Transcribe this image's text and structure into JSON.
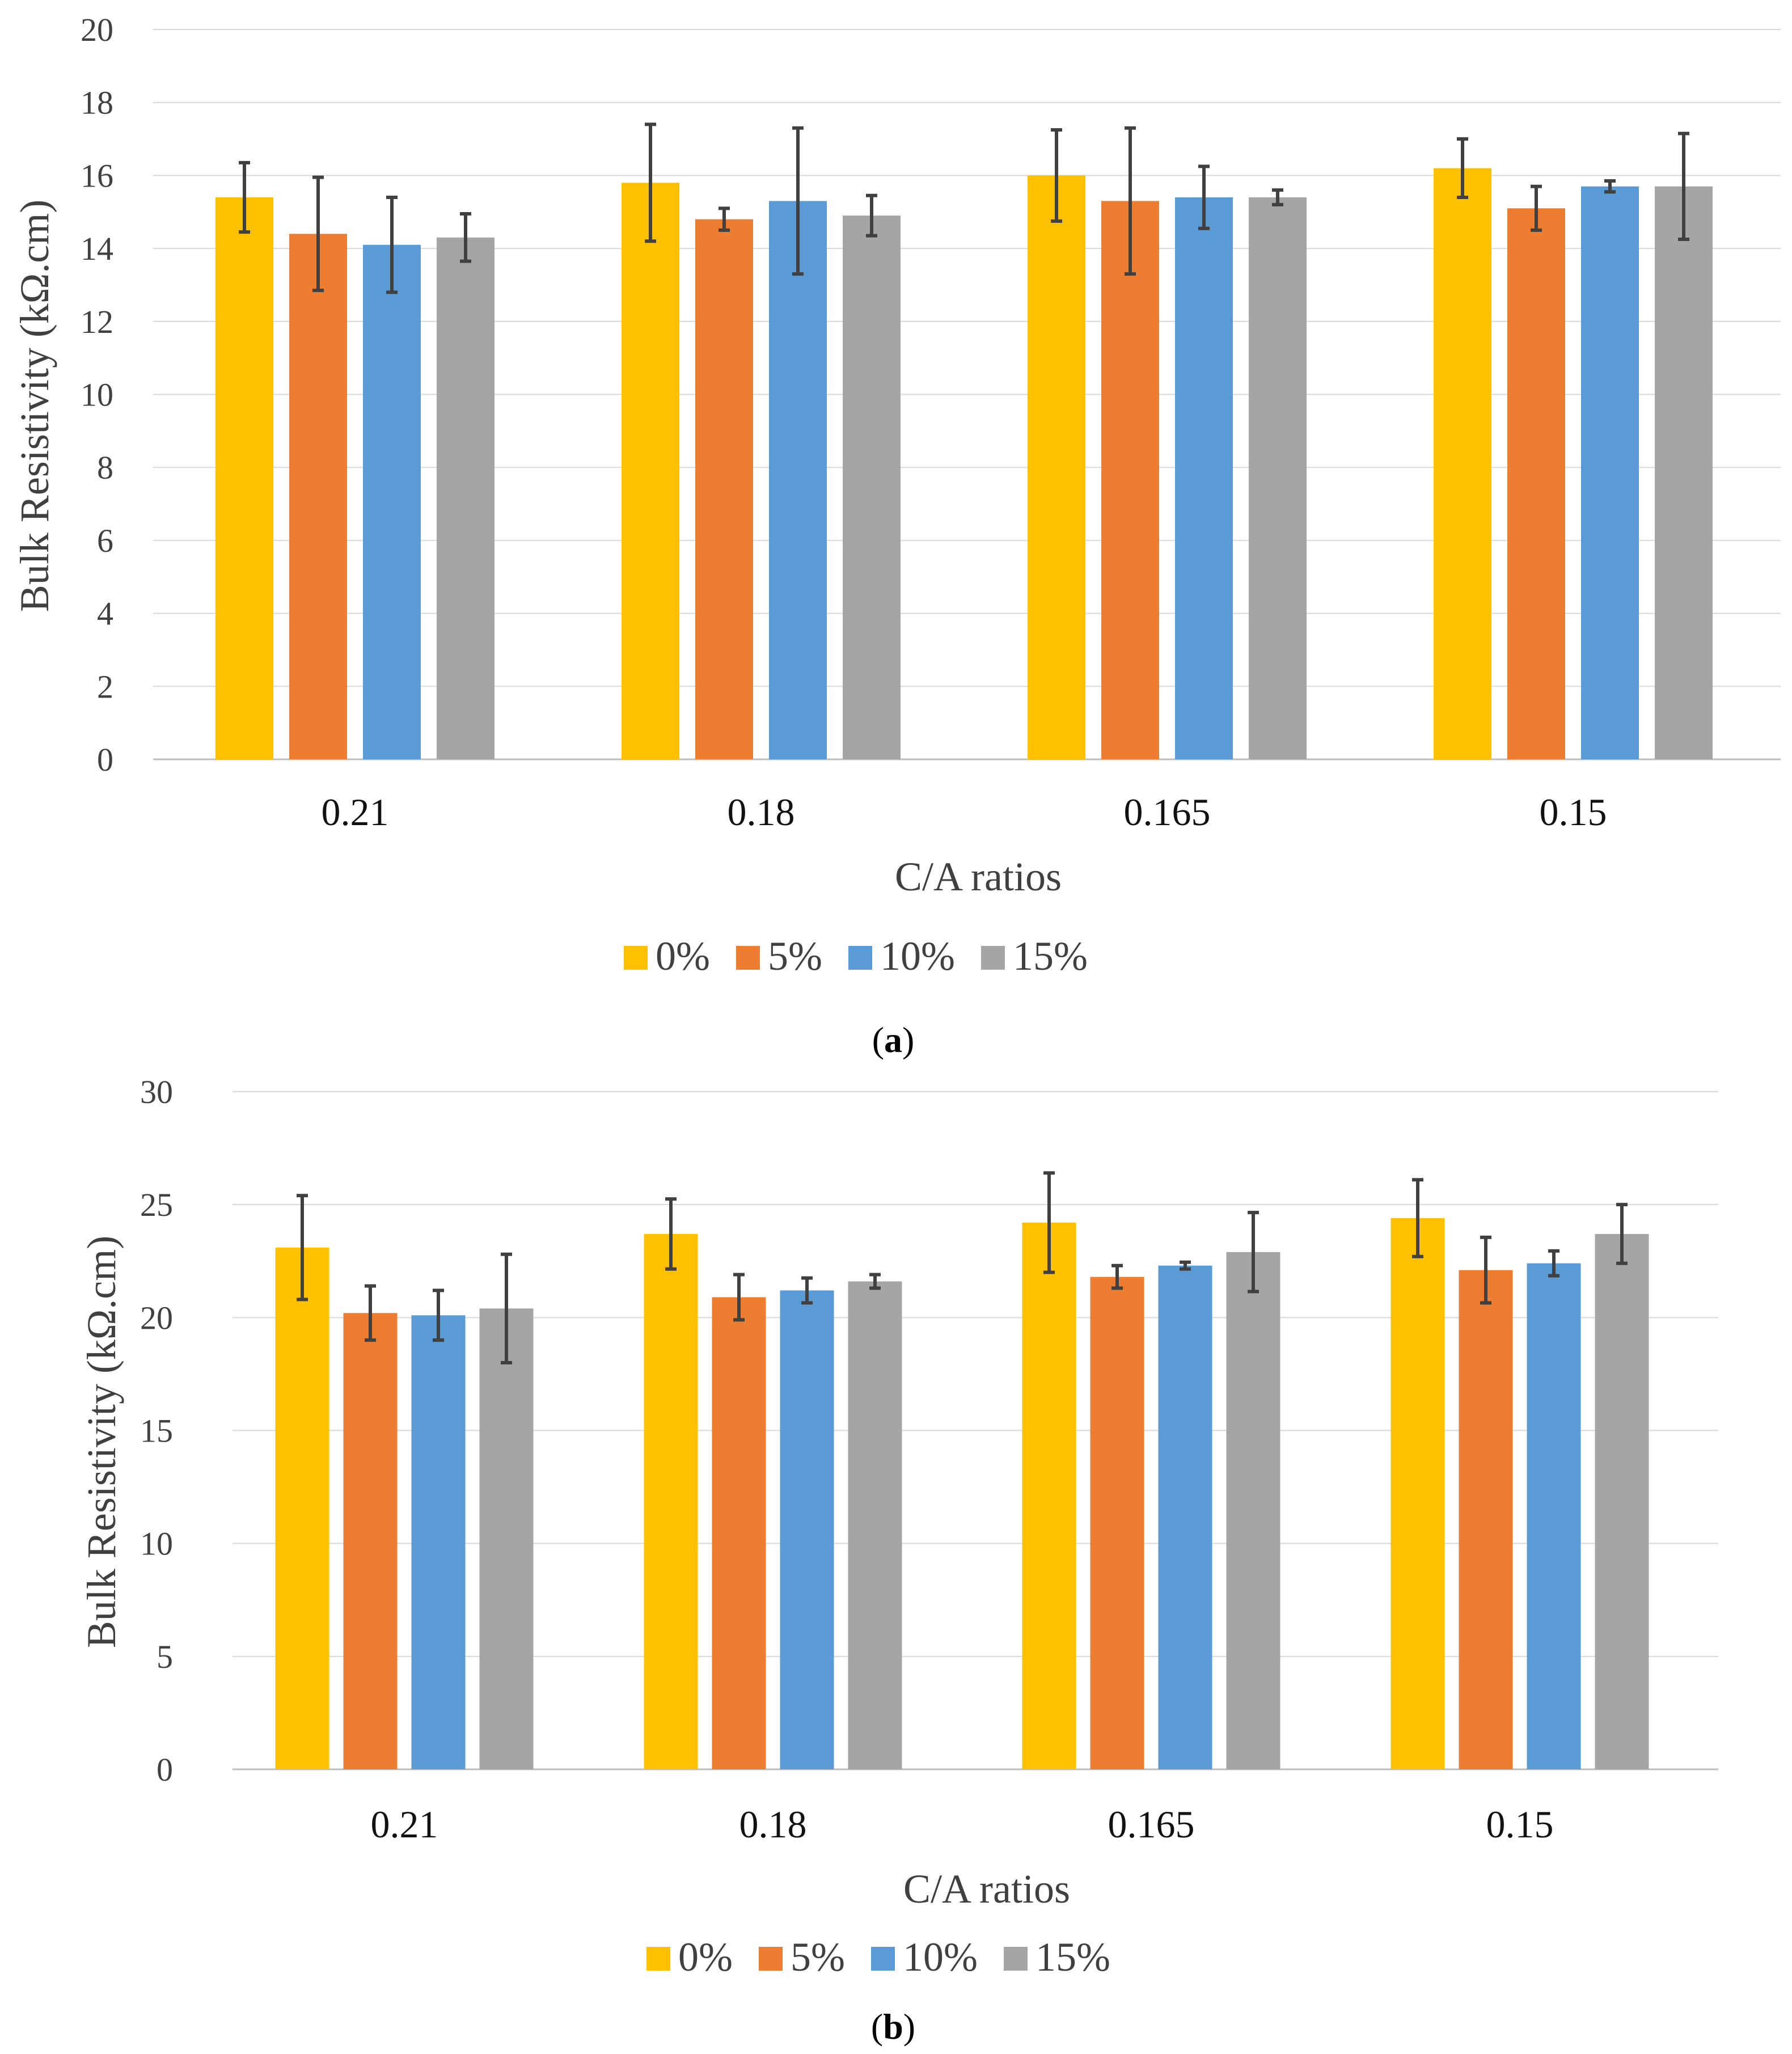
{
  "chart_data": [
    {
      "type": "bar",
      "panel_label": "a",
      "categories": [
        "0.21",
        "0.18",
        "0.165",
        "0.15"
      ],
      "xlabel": "C/A ratios",
      "ylabel": "Bulk Resistivity (kΩ.cm)",
      "ylim": [
        0,
        20
      ],
      "yticks": [
        0,
        2,
        4,
        6,
        8,
        10,
        12,
        14,
        16,
        18,
        20
      ],
      "grid": true,
      "legend_position": "bottom",
      "series": [
        {
          "name": "0%",
          "color": "#FFC000",
          "values": [
            15.4,
            15.8,
            16.0,
            16.2
          ],
          "errors": [
            0.95,
            1.6,
            1.25,
            0.8
          ]
        },
        {
          "name": "5%",
          "color": "#ED7D31",
          "values": [
            14.4,
            14.8,
            15.3,
            15.1
          ],
          "errors": [
            1.55,
            0.3,
            2.0,
            0.6
          ]
        },
        {
          "name": "10%",
          "color": "#5B9BD5",
          "values": [
            14.1,
            15.3,
            15.4,
            15.7
          ],
          "errors": [
            1.3,
            2.0,
            0.85,
            0.15
          ]
        },
        {
          "name": "15%",
          "color": "#A5A5A5",
          "values": [
            14.3,
            14.9,
            15.4,
            15.7
          ],
          "errors": [
            0.65,
            0.55,
            0.2,
            1.45
          ]
        }
      ]
    },
    {
      "type": "bar",
      "panel_label": "b",
      "categories": [
        "0.21",
        "0.18",
        "0.165",
        "0.15"
      ],
      "xlabel": "C/A ratios",
      "ylabel": "Bulk Resistivity (kΩ.cm)",
      "ylim": [
        0,
        30
      ],
      "yticks": [
        0,
        5,
        10,
        15,
        20,
        25,
        30
      ],
      "grid": true,
      "legend_position": "bottom",
      "series": [
        {
          "name": "0%",
          "color": "#FFC000",
          "values": [
            23.1,
            23.7,
            24.2,
            24.4
          ],
          "errors": [
            2.3,
            1.55,
            2.2,
            1.7
          ]
        },
        {
          "name": "5%",
          "color": "#ED7D31",
          "values": [
            20.2,
            20.9,
            21.8,
            22.1
          ],
          "errors": [
            1.2,
            1.0,
            0.5,
            1.45
          ]
        },
        {
          "name": "10%",
          "color": "#5B9BD5",
          "values": [
            20.1,
            21.2,
            22.3,
            22.4
          ],
          "errors": [
            1.1,
            0.55,
            0.15,
            0.55
          ]
        },
        {
          "name": "15%",
          "color": "#A5A5A5",
          "values": [
            20.4,
            21.6,
            22.9,
            23.7
          ],
          "errors": [
            2.4,
            0.3,
            1.75,
            1.3
          ]
        }
      ]
    }
  ]
}
